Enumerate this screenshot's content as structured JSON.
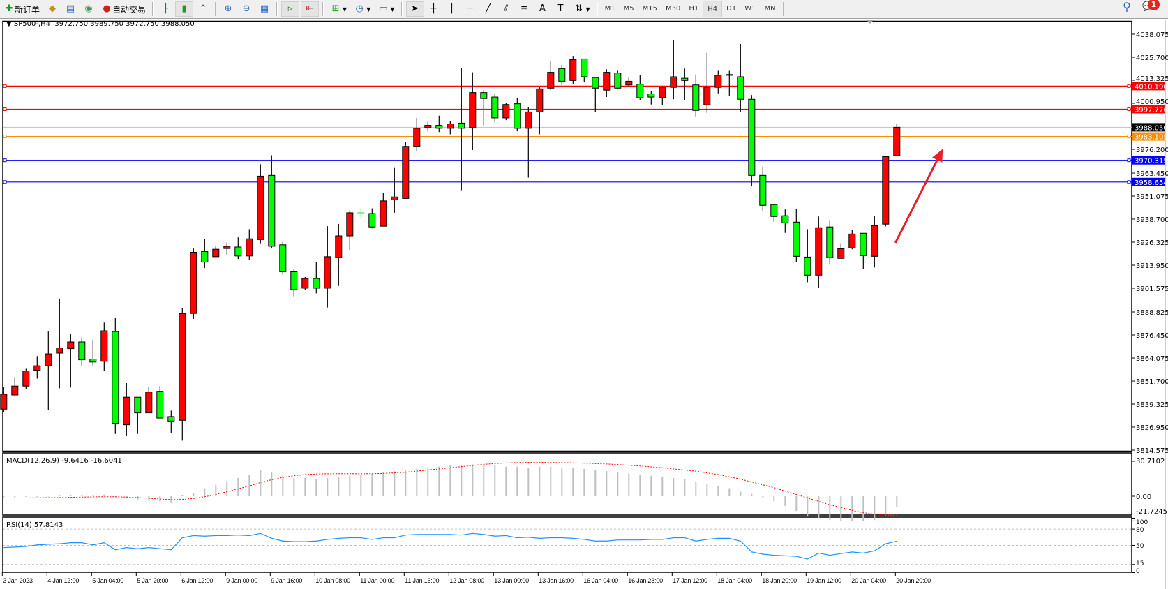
{
  "toolbar": {
    "new_order_label": "新订单",
    "auto_trading_label": "自动交易",
    "timeframes": [
      "M1",
      "M5",
      "M15",
      "M30",
      "H1",
      "H4",
      "D1",
      "W1",
      "MN"
    ],
    "active_timeframe": "H4",
    "notification_count": "1",
    "icons": [
      "new-order-icon",
      "history-icon",
      "data-window-icon",
      "signals-icon",
      "auto-trading-icon",
      "bar-chart-icon",
      "candlestick-icon",
      "line-chart-icon",
      "zoom-in-icon",
      "zoom-out-icon",
      "tile-windows-icon",
      "auto-scroll-icon",
      "chart-shift-icon",
      "indicators-icon",
      "periods-icon",
      "templates-icon",
      "cursor-icon",
      "crosshair-icon",
      "vertical-line-icon",
      "horizontal-line-icon",
      "trendline-icon",
      "equidistant-channel-icon",
      "fibonacci-icon",
      "text-icon",
      "text-label-icon",
      "arrows-icon",
      "search-icon",
      "notification-icon"
    ]
  },
  "header": {
    "symbol_label": "SP500-,H4",
    "ohlc_label": "3972.750 3989.750 3972.750 3988.050"
  },
  "chart_data": {
    "type": "candlestick",
    "symbol": "SP500-",
    "timeframe": "H4",
    "colors": {
      "up": "#ff0000",
      "down": "#00ff00",
      "wick": "#000000",
      "background": "#ffffff"
    },
    "ylim": [
      3814.575,
      4038.075
    ],
    "price_ticks": [
      "4038.075",
      "4025.700",
      "4013.325",
      "4000.950",
      "3976.200",
      "3963.450",
      "3951.075",
      "3938.700",
      "3926.325",
      "3913.950",
      "3901.575",
      "3888.825",
      "3876.450",
      "3864.075",
      "3851.700",
      "3839.325",
      "3826.950",
      "3814.575"
    ],
    "time_labels": [
      "3 Jan 2023",
      "4 Jan 12:00",
      "5 Jan 04:00",
      "5 Jan 20:00",
      "6 Jan 12:00",
      "9 Jan 00:00",
      "9 Jan 16:00",
      "10 Jan 08:00",
      "11 Jan 00:00",
      "11 Jan 16:00",
      "12 Jan 08:00",
      "13 Jan 00:00",
      "13 Jan 16:00",
      "16 Jan 04:00",
      "16 Jan 23:00",
      "17 Jan 12:00",
      "18 Jan 04:00",
      "18 Jan 20:00",
      "19 Jan 12:00",
      "20 Jan 04:00",
      "20 Jan 20:00"
    ],
    "time_label_every_bars": 4,
    "ohlc_fields": [
      "open",
      "high",
      "low",
      "close"
    ],
    "ohlc": [
      [
        3836.6,
        3848.7,
        3835.0,
        3844.6
      ],
      [
        3844.2,
        3853.8,
        3843.4,
        3849.0
      ],
      [
        3849.0,
        3858.3,
        3847.4,
        3857.1
      ],
      [
        3857.5,
        3865.1,
        3853.0,
        3859.9
      ],
      [
        3859.9,
        3878.3,
        3836.2,
        3866.3
      ],
      [
        3866.7,
        3896.0,
        3847.8,
        3869.5
      ],
      [
        3869.1,
        3877.1,
        3848.2,
        3872.7
      ],
      [
        3872.7,
        3875.1,
        3859.9,
        3863.1
      ],
      [
        3863.5,
        3873.9,
        3859.9,
        3861.9
      ],
      [
        3862.3,
        3883.1,
        3857.1,
        3878.7
      ],
      [
        3878.3,
        3885.5,
        3823.3,
        3829.0
      ],
      [
        3828.2,
        3850.6,
        3822.1,
        3843.0
      ],
      [
        3843.0,
        3843.0,
        3823.3,
        3834.6
      ],
      [
        3834.6,
        3848.6,
        3834.6,
        3845.8
      ],
      [
        3846.2,
        3849.0,
        3831.8,
        3831.8
      ],
      [
        3832.6,
        3835.8,
        3823.7,
        3830.2
      ],
      [
        3830.6,
        3890.8,
        3819.7,
        3888.0
      ],
      [
        3888.0,
        3922.9,
        3885.1,
        3920.9
      ],
      [
        3921.3,
        3928.1,
        3912.4,
        3915.6
      ],
      [
        3918.5,
        3924.1,
        3918.5,
        3922.5
      ],
      [
        3922.9,
        3926.1,
        3919.3,
        3924.1
      ],
      [
        3923.7,
        3928.9,
        3917.3,
        3918.9
      ],
      [
        3918.9,
        3933.3,
        3916.9,
        3928.1
      ],
      [
        3927.7,
        3968.2,
        3925.7,
        3961.8
      ],
      [
        3962.2,
        3973.0,
        3922.9,
        3924.1
      ],
      [
        3924.9,
        3926.5,
        3908.8,
        3910.4
      ],
      [
        3910.4,
        3911.6,
        3897.2,
        3900.8
      ],
      [
        3901.6,
        3907.6,
        3900.8,
        3906.8
      ],
      [
        3906.8,
        3915.6,
        3898.8,
        3901.6
      ],
      [
        3901.6,
        3934.9,
        3891.2,
        3918.5
      ],
      [
        3918.1,
        3936.1,
        3902.8,
        3929.7
      ],
      [
        3929.7,
        3943.3,
        3922.1,
        3942.1
      ],
      [
        3942.1,
        3944.5,
        3939.3,
        3942.1
      ],
      [
        3941.7,
        3944.5,
        3933.7,
        3934.5
      ],
      [
        3934.9,
        3952.6,
        3934.9,
        3948.5
      ],
      [
        3949.0,
        3966.2,
        3942.1,
        3950.6
      ],
      [
        3949.8,
        3980.3,
        3949.8,
        3977.8
      ],
      [
        3977.8,
        3993.1,
        3975.0,
        3987.5
      ],
      [
        3987.9,
        3991.1,
        3985.9,
        3989.1
      ],
      [
        3989.1,
        3994.3,
        3985.5,
        3987.5
      ],
      [
        3987.5,
        3991.5,
        3984.3,
        3989.9
      ],
      [
        3990.3,
        4020.0,
        3954.2,
        3987.5
      ],
      [
        3987.9,
        4017.6,
        3975.8,
        4006.7
      ],
      [
        4006.7,
        4008.0,
        3989.1,
        4003.5
      ],
      [
        4004.3,
        4006.3,
        3990.7,
        3993.1
      ],
      [
        3993.1,
        4001.1,
        3991.9,
        4000.3
      ],
      [
        4000.7,
        4003.9,
        3985.9,
        3987.5
      ],
      [
        3987.5,
        3999.1,
        3961.0,
        3996.3
      ],
      [
        3996.3,
        4010.0,
        3984.3,
        4008.7
      ],
      [
        4009.1,
        4023.6,
        4008.0,
        4017.6
      ],
      [
        4019.6,
        4021.6,
        4010.8,
        4012.8
      ],
      [
        4013.2,
        4026.4,
        4011.2,
        4024.4
      ],
      [
        4024.8,
        4024.8,
        4012.4,
        4015.2
      ],
      [
        4014.8,
        4015.2,
        3996.3,
        4009.1
      ],
      [
        4008.0,
        4019.2,
        4004.3,
        4017.6
      ],
      [
        4017.2,
        4018.4,
        4008.7,
        4009.1
      ],
      [
        4010.8,
        4014.8,
        4010.0,
        4012.8
      ],
      [
        4011.2,
        4016.0,
        4002.7,
        4003.9
      ],
      [
        4006.0,
        4007.5,
        4000.3,
        4004.3
      ],
      [
        4003.9,
        4010.0,
        3999.9,
        4009.5
      ],
      [
        4009.5,
        4034.8,
        4003.1,
        4015.2
      ],
      [
        4014.4,
        4019.6,
        4002.7,
        4013.2
      ],
      [
        4010.8,
        4016.4,
        3993.9,
        3997.1
      ],
      [
        4000.1,
        4028.0,
        3995.8,
        4009.5
      ],
      [
        4009.5,
        4018.4,
        4006.3,
        4016.0
      ],
      [
        4016.4,
        4018.4,
        4005.1,
        4016.0
      ],
      [
        4015.2,
        4032.8,
        3996.3,
        4003.1
      ],
      [
        4003.1,
        4005.4,
        3956.3,
        3962.2
      ],
      [
        3962.2,
        3966.8,
        3943.1,
        3946.1
      ],
      [
        3946.5,
        3946.9,
        3937.3,
        3940.1
      ],
      [
        3940.5,
        3943.9,
        3931.3,
        3936.7
      ],
      [
        3937.1,
        3944.3,
        3915.6,
        3918.7
      ],
      [
        3918.3,
        3933.3,
        3904.8,
        3908.6
      ],
      [
        3908.6,
        3940.1,
        3901.8,
        3934.1
      ],
      [
        3934.5,
        3938.2,
        3914.6,
        3918.0
      ],
      [
        3917.6,
        3925.8,
        3917.6,
        3922.8
      ],
      [
        3923.2,
        3933.0,
        3922.5,
        3930.7
      ],
      [
        3931.1,
        3931.1,
        3912.0,
        3919.1
      ],
      [
        3918.7,
        3940.5,
        3912.7,
        3935.2
      ],
      [
        3936.0,
        3972.7,
        3934.8,
        3972.3
      ],
      [
        3972.75,
        3989.75,
        3972.75,
        3988.05
      ]
    ],
    "current_price": {
      "value": "3988.050",
      "color": "#000000"
    },
    "levels": [
      {
        "value": "4010.190",
        "color": "#ff0000"
      },
      {
        "value": "3997.776",
        "color": "#ff0000"
      },
      {
        "value": "3983.105",
        "color": "#ff8c00"
      },
      {
        "value": "3970.315",
        "color": "#0000ff"
      },
      {
        "value": "3958.654",
        "color": "#0000ff"
      }
    ],
    "annotation_arrow": {
      "from": {
        "bar": 80,
        "price": 3926
      },
      "to": {
        "bar": 84,
        "price": 3976.5
      },
      "color": "#e8202a"
    },
    "macd": {
      "label": "MACD(12,26,9) -9.6416 -16.6041",
      "axis_labels": [
        "30.7102",
        "0.00",
        "-21.7245"
      ],
      "ylim": [
        -21.7245,
        30.7102
      ],
      "histogram_color": "#c0c0c0",
      "signal_color": "#ff0000",
      "main": [
        -1,
        -1,
        -0.5,
        -0.5,
        0,
        0.5,
        1,
        1,
        1,
        1.5,
        -1,
        -2,
        -3,
        -4,
        -5,
        -6,
        1,
        3,
        7,
        10,
        13,
        16,
        19,
        23,
        21,
        18,
        16,
        16,
        15,
        16,
        17,
        18,
        19,
        20,
        21,
        22,
        23,
        24,
        25,
        26,
        27,
        27,
        28,
        27,
        27,
        26,
        26,
        25,
        26,
        26,
        25,
        25,
        24,
        23,
        22,
        21,
        20,
        19,
        18,
        17,
        16,
        15,
        13,
        11,
        9,
        7,
        4,
        2,
        -1,
        -4.5,
        -8.5,
        -13,
        -18,
        -19,
        -21,
        -21.7,
        -22,
        -21.5,
        -21,
        -16.6,
        -9.6416
      ],
      "signal": [
        -1.5,
        -1.5,
        -1.5,
        -1.4,
        -1.3,
        -1.2,
        -1,
        -0.8,
        -0.6,
        -0.4,
        -0.5,
        -0.8,
        -1.2,
        -1.8,
        -2.5,
        -3,
        -2.8,
        -2,
        -0.5,
        1.5,
        4,
        6.5,
        9,
        12,
        14.5,
        16.5,
        18,
        19,
        19.5,
        19.7,
        19.8,
        19.8,
        19.7,
        19.8,
        20,
        20.5,
        21,
        22,
        23,
        24,
        25,
        26,
        27,
        28,
        28.7,
        29.2,
        29.5,
        29.7,
        29.7,
        29.6,
        29.5,
        29.3,
        29,
        28.7,
        28.3,
        27.8,
        27.2,
        26.5,
        25.8,
        25,
        24,
        23,
        22,
        20.5,
        19,
        17,
        15,
        12.5,
        10,
        7.5,
        4.5,
        1.5,
        -1.5,
        -4.5,
        -7.5,
        -10,
        -12.5,
        -14.5,
        -15.8,
        -16.4,
        -16.6041
      ]
    },
    "rsi": {
      "label": "RSI(14) 57.8143",
      "axis_labels": [
        "100",
        "80",
        "50",
        "15",
        "0"
      ],
      "levels": [
        80,
        50,
        15
      ],
      "ylim": [
        0,
        100
      ],
      "color": "#1e90ff",
      "values": [
        46,
        47,
        48,
        51,
        52,
        53,
        55,
        55,
        51,
        55,
        42,
        46,
        44,
        46,
        44,
        42,
        64,
        68,
        67,
        68,
        68,
        69,
        68,
        72,
        63,
        58,
        57,
        57,
        58,
        61,
        63,
        64,
        64,
        61,
        64,
        64,
        69,
        70,
        70,
        70,
        70,
        69,
        72,
        70,
        67,
        68,
        64,
        65,
        63,
        64,
        64,
        63,
        61,
        58,
        58,
        60,
        60,
        60,
        61,
        61,
        64,
        64,
        58,
        61,
        63,
        63,
        58,
        38,
        34,
        32,
        31,
        30,
        25,
        36,
        32,
        35,
        38,
        36,
        40,
        53,
        57.8143
      ]
    }
  }
}
